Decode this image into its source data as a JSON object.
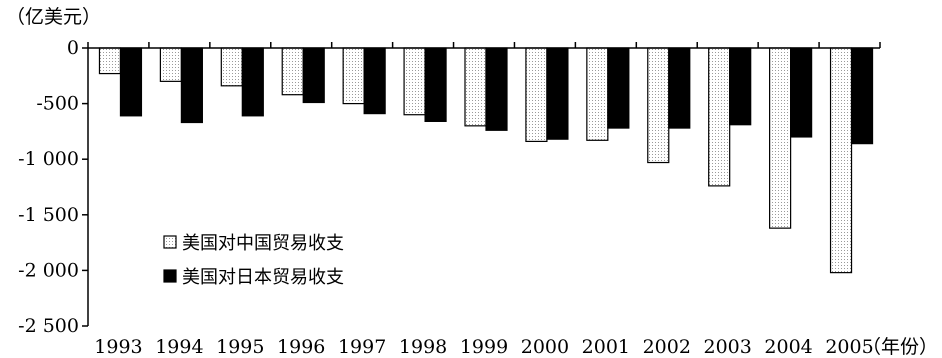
{
  "chart_data": {
    "type": "bar",
    "y_unit": "（亿美元）",
    "x_unit": "（年份）",
    "categories": [
      "1993",
      "1994",
      "1995",
      "1996",
      "1997",
      "1998",
      "1999",
      "2000",
      "2001",
      "2002",
      "2003",
      "2004",
      "2005"
    ],
    "series": [
      {
        "name": "美国对中国贸易收支",
        "fill": "dotted-white",
        "values": [
          -230,
          -300,
          -340,
          -420,
          -500,
          -600,
          -700,
          -840,
          -830,
          -1030,
          -1240,
          -1620,
          -2020
        ]
      },
      {
        "name": "美国对日本贸易收支",
        "fill": "#000000",
        "values": [
          -610,
          -670,
          -610,
          -490,
          -590,
          -660,
          -740,
          -820,
          -720,
          -720,
          -690,
          -800,
          -860
        ]
      }
    ],
    "ylim": [
      -2500,
      0
    ],
    "yticks": [
      0,
      -500,
      -1000,
      -1500,
      -2000,
      -2500
    ],
    "ytick_labels": [
      "0",
      "-500",
      "-1 000",
      "-1 500",
      "-2 000",
      "-2 500"
    ],
    "grid": false,
    "legend_position": "inside-lower-left"
  }
}
